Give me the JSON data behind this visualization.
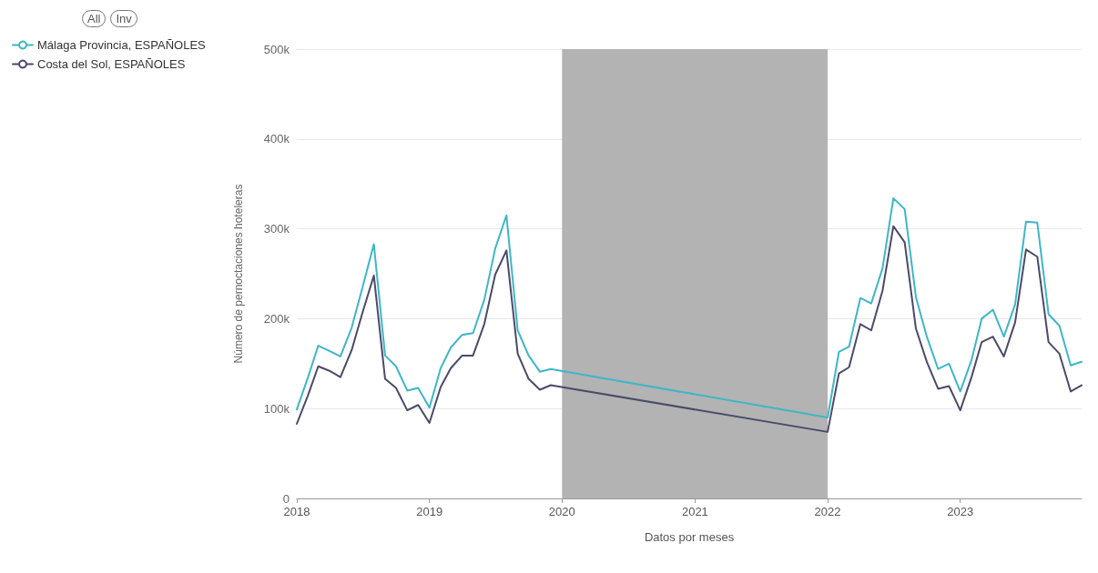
{
  "chart_data": {
    "type": "line",
    "xlabel": "Datos por meses",
    "ylabel": "Número de pernoctaciones hoteleras",
    "annotations": [
      "All",
      "Inv"
    ],
    "x": [
      "2018-01",
      "2018-02",
      "2018-03",
      "2018-04",
      "2018-05",
      "2018-06",
      "2018-07",
      "2018-08",
      "2018-09",
      "2018-10",
      "2018-11",
      "2018-12",
      "2019-01",
      "2019-02",
      "2019-03",
      "2019-04",
      "2019-05",
      "2019-06",
      "2019-07",
      "2019-08",
      "2019-09",
      "2019-10",
      "2019-11",
      "2019-12",
      "2022-01",
      "2022-02",
      "2022-03",
      "2022-04",
      "2022-05",
      "2022-06",
      "2022-07",
      "2022-08",
      "2022-09",
      "2022-10",
      "2022-11",
      "2022-12",
      "2023-01",
      "2023-02",
      "2023-03",
      "2023-04",
      "2023-05",
      "2023-06",
      "2023-07",
      "2023-08",
      "2023-09",
      "2023-10",
      "2023-11",
      "2023-12"
    ],
    "series": [
      {
        "name": "Málaga Provincia, ESPAÑOLES",
        "color": "#3fb6c6",
        "values": [
          99000,
          135000,
          170000,
          164000,
          158000,
          190000,
          235000,
          283000,
          159000,
          147000,
          120000,
          123000,
          101000,
          145000,
          168000,
          182000,
          184000,
          221000,
          278000,
          315000,
          187000,
          159000,
          141000,
          144000,
          90000,
          163000,
          169000,
          223000,
          217000,
          256000,
          334000,
          322000,
          224000,
          180000,
          144000,
          150000,
          119000,
          154000,
          200000,
          210000,
          180000,
          216000,
          308000,
          307000,
          205000,
          192000,
          148000,
          152000
        ]
      },
      {
        "name": "Costa del Sol, ESPAÑOLES",
        "color": "#4a4a6a",
        "values": [
          83000,
          115000,
          147000,
          142000,
          135000,
          165000,
          207000,
          248000,
          133000,
          123000,
          98000,
          104000,
          84000,
          124000,
          145000,
          159000,
          159000,
          194000,
          249000,
          276000,
          161000,
          133000,
          121000,
          126000,
          74000,
          139000,
          146000,
          194000,
          187000,
          231000,
          303000,
          285000,
          189000,
          152000,
          122000,
          125000,
          98000,
          135000,
          174000,
          180000,
          158000,
          196000,
          277000,
          269000,
          174000,
          161000,
          119000,
          126000
        ]
      }
    ],
    "xlim": [
      "2018-01",
      "2023-12"
    ],
    "xticks": [
      "2018",
      "2019",
      "2020",
      "2021",
      "2022",
      "2023"
    ],
    "ylim": [
      0,
      500000
    ],
    "yticks": [
      {
        "value": 0,
        "label": "0"
      },
      {
        "value": 100000,
        "label": "100k"
      },
      {
        "value": 200000,
        "label": "200k"
      },
      {
        "value": 300000,
        "label": "300k"
      },
      {
        "value": 400000,
        "label": "400k"
      },
      {
        "value": 500000,
        "label": "500k"
      }
    ],
    "bands": [
      {
        "axis": "x",
        "from": "2020-01",
        "to": "2022-01",
        "color": "#b3b3b3"
      }
    ],
    "grid": "y",
    "legend": "top left",
    "marker": "none",
    "line_style": "solid"
  }
}
